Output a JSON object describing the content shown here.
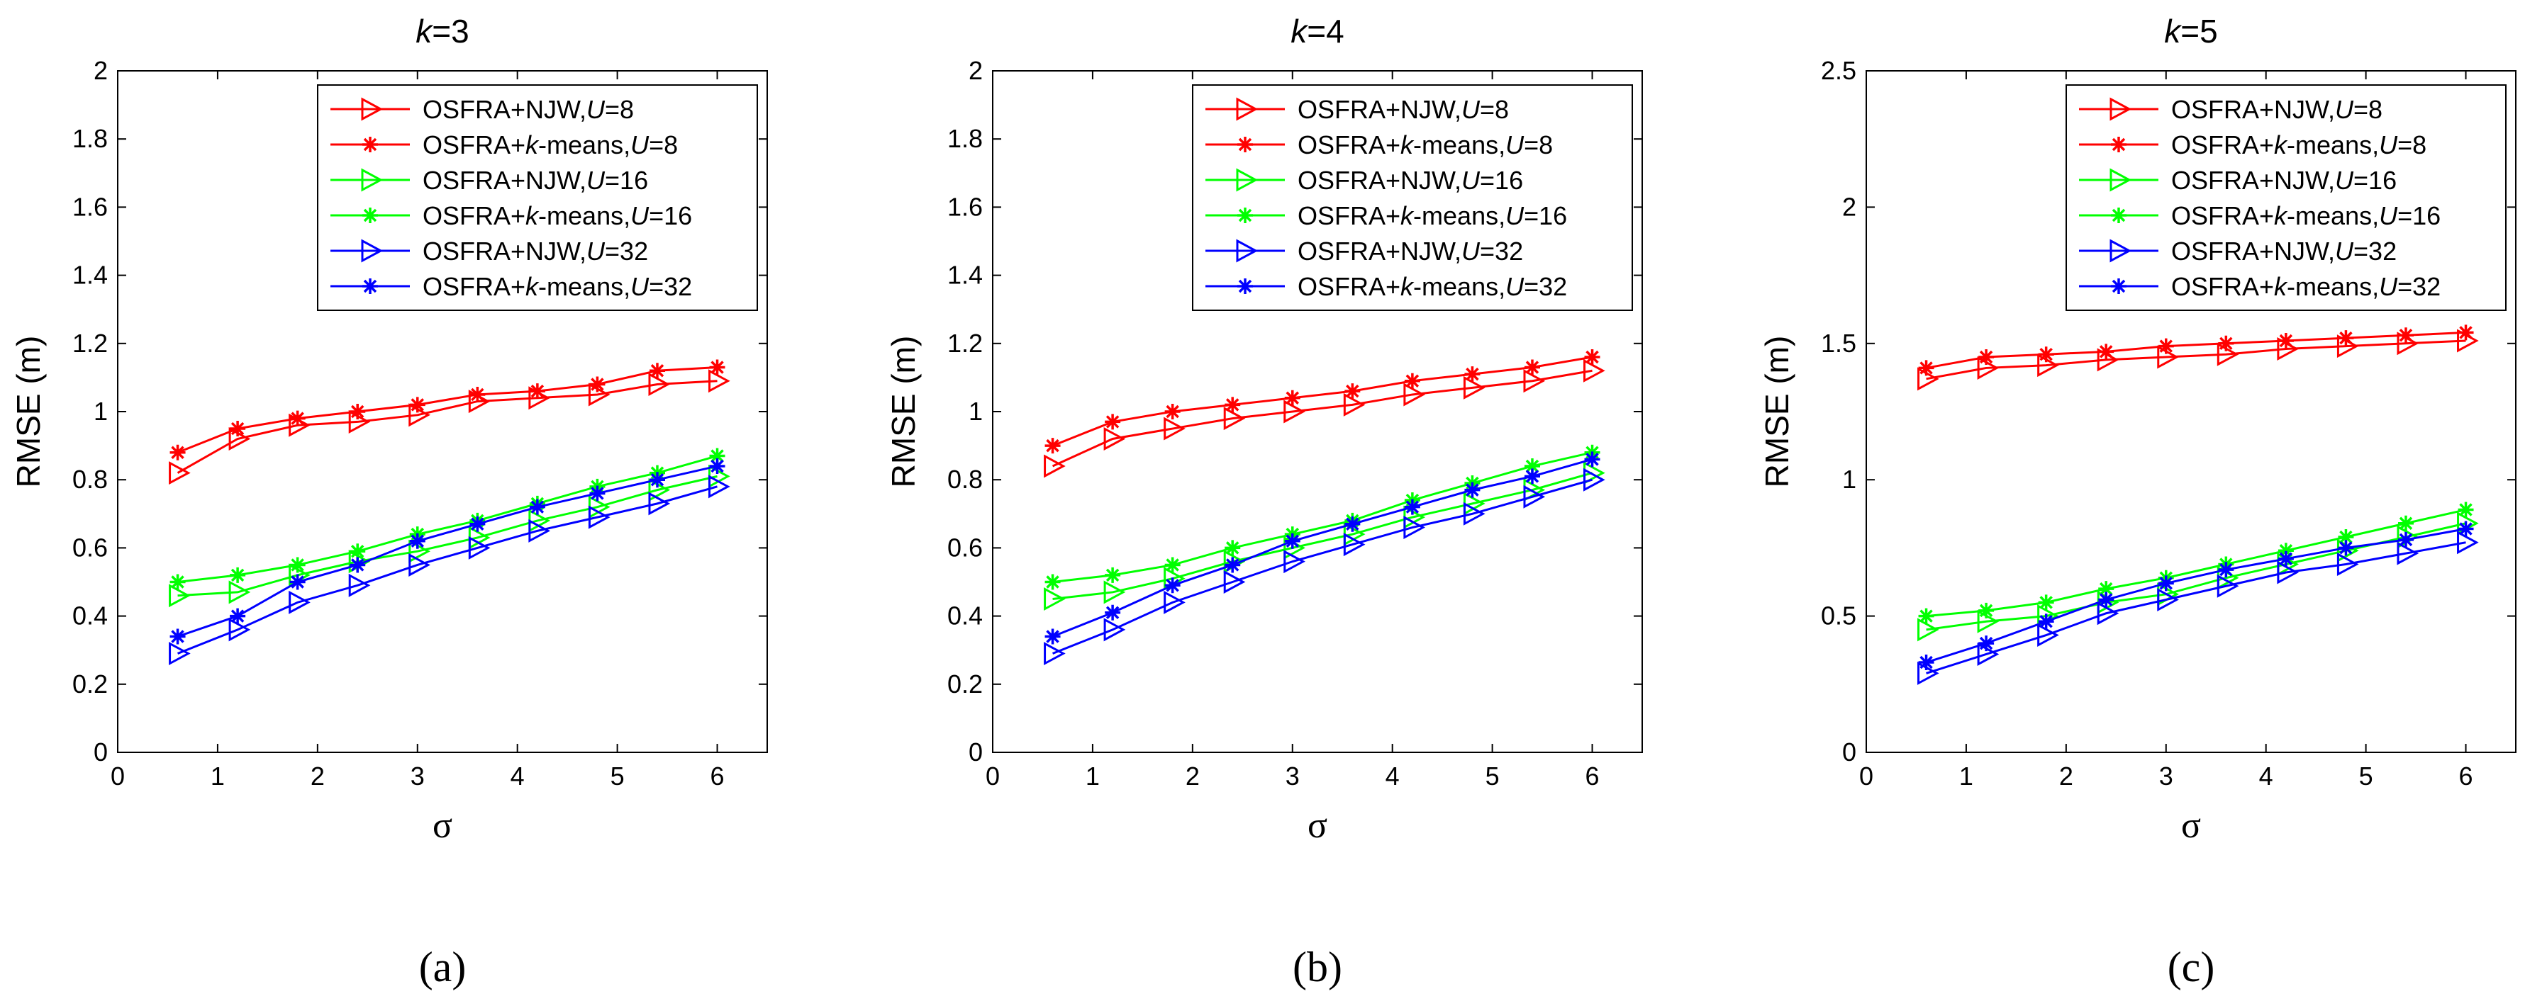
{
  "chart_data": [
    {
      "type": "line",
      "panel_label": "(a)",
      "title_prefix": "k",
      "title_suffix": "=3",
      "xlabel": "σ",
      "ylabel": "RMSE (m)",
      "xlim": [
        0,
        6.5
      ],
      "ylim": [
        0,
        2
      ],
      "xticks": [
        0,
        1,
        2,
        3,
        4,
        5,
        6
      ],
      "yticks": [
        0,
        0.2,
        0.4,
        0.6,
        0.8,
        1,
        1.2,
        1.4,
        1.6,
        1.8,
        2
      ],
      "ytick_labels": [
        "0",
        "0.2",
        "0.4",
        "0.6",
        "0.8",
        "1",
        "1.2",
        "1.4",
        "1.6",
        "1.8",
        "2"
      ],
      "x": [
        0.6,
        1.2,
        1.8,
        2.4,
        3.0,
        3.6,
        4.2,
        4.8,
        5.4,
        6.0
      ],
      "legend_position": "top-right",
      "series": [
        {
          "name": "OSFRA+NJW,U=8",
          "legend_prefix": "OSFRA+NJW,",
          "legend_ital": "U",
          "legend_suffix": "=8",
          "color": "#ff0000",
          "marker": "triangle-right",
          "values": [
            0.82,
            0.92,
            0.96,
            0.97,
            0.99,
            1.03,
            1.04,
            1.05,
            1.08,
            1.09
          ]
        },
        {
          "name": "OSFRA+k-means,U=8",
          "legend_prefix": "OSFRA+",
          "legend_k": "k",
          "legend_mid": "-means,",
          "legend_ital": "U",
          "legend_suffix": "=8",
          "color": "#ff0000",
          "marker": "star",
          "values": [
            0.88,
            0.95,
            0.98,
            1.0,
            1.02,
            1.05,
            1.06,
            1.08,
            1.12,
            1.13
          ]
        },
        {
          "name": "OSFRA+NJW,U=16",
          "legend_prefix": "OSFRA+NJW,",
          "legend_ital": "U",
          "legend_suffix": "=16",
          "color": "#00ff00",
          "marker": "triangle-right",
          "values": [
            0.46,
            0.47,
            0.52,
            0.56,
            0.59,
            0.63,
            0.68,
            0.72,
            0.77,
            0.81
          ]
        },
        {
          "name": "OSFRA+k-means,U=16",
          "legend_prefix": "OSFRA+",
          "legend_k": "k",
          "legend_mid": "-means,",
          "legend_ital": "U",
          "legend_suffix": "=16",
          "color": "#00ff00",
          "marker": "star",
          "values": [
            0.5,
            0.52,
            0.55,
            0.59,
            0.64,
            0.68,
            0.73,
            0.78,
            0.82,
            0.87
          ]
        },
        {
          "name": "OSFRA+NJW,U=32",
          "legend_prefix": "OSFRA+NJW,",
          "legend_ital": "U",
          "legend_suffix": "=32",
          "color": "#0000ff",
          "marker": "triangle-right",
          "values": [
            0.29,
            0.36,
            0.44,
            0.49,
            0.55,
            0.6,
            0.65,
            0.69,
            0.73,
            0.78
          ]
        },
        {
          "name": "OSFRA+k-means,U=32",
          "legend_prefix": "OSFRA+",
          "legend_k": "k",
          "legend_mid": "-means,",
          "legend_ital": "U",
          "legend_suffix": "=32",
          "color": "#0000ff",
          "marker": "star",
          "values": [
            0.34,
            0.4,
            0.5,
            0.55,
            0.62,
            0.67,
            0.72,
            0.76,
            0.8,
            0.84
          ]
        }
      ]
    },
    {
      "type": "line",
      "panel_label": "(b)",
      "title_prefix": "k",
      "title_suffix": "=4",
      "xlabel": "σ",
      "ylabel": "RMSE (m)",
      "xlim": [
        0,
        6.5
      ],
      "ylim": [
        0,
        2
      ],
      "xticks": [
        0,
        1,
        2,
        3,
        4,
        5,
        6
      ],
      "yticks": [
        0,
        0.2,
        0.4,
        0.6,
        0.8,
        1,
        1.2,
        1.4,
        1.6,
        1.8,
        2
      ],
      "ytick_labels": [
        "0",
        "0.2",
        "0.4",
        "0.6",
        "0.8",
        "1",
        "1.2",
        "1.4",
        "1.6",
        "1.8",
        "2"
      ],
      "x": [
        0.6,
        1.2,
        1.8,
        2.4,
        3.0,
        3.6,
        4.2,
        4.8,
        5.4,
        6.0
      ],
      "legend_position": "top-right",
      "series": [
        {
          "name": "OSFRA+NJW,U=8",
          "legend_prefix": "OSFRA+NJW,",
          "legend_ital": "U",
          "legend_suffix": "=8",
          "color": "#ff0000",
          "marker": "triangle-right",
          "values": [
            0.84,
            0.92,
            0.95,
            0.98,
            1.0,
            1.02,
            1.05,
            1.07,
            1.09,
            1.12
          ]
        },
        {
          "name": "OSFRA+k-means,U=8",
          "legend_prefix": "OSFRA+",
          "legend_k": "k",
          "legend_mid": "-means,",
          "legend_ital": "U",
          "legend_suffix": "=8",
          "color": "#ff0000",
          "marker": "star",
          "values": [
            0.9,
            0.97,
            1.0,
            1.02,
            1.04,
            1.06,
            1.09,
            1.11,
            1.13,
            1.16
          ]
        },
        {
          "name": "OSFRA+NJW,U=16",
          "legend_prefix": "OSFRA+NJW,",
          "legend_ital": "U",
          "legend_suffix": "=16",
          "color": "#00ff00",
          "marker": "triangle-right",
          "values": [
            0.45,
            0.47,
            0.51,
            0.56,
            0.6,
            0.64,
            0.69,
            0.73,
            0.77,
            0.82
          ]
        },
        {
          "name": "OSFRA+k-means,U=16",
          "legend_prefix": "OSFRA+",
          "legend_k": "k",
          "legend_mid": "-means,",
          "legend_ital": "U",
          "legend_suffix": "=16",
          "color": "#00ff00",
          "marker": "star",
          "values": [
            0.5,
            0.52,
            0.55,
            0.6,
            0.64,
            0.68,
            0.74,
            0.79,
            0.84,
            0.88
          ]
        },
        {
          "name": "OSFRA+NJW,U=32",
          "legend_prefix": "OSFRA+NJW,",
          "legend_ital": "U",
          "legend_suffix": "=32",
          "color": "#0000ff",
          "marker": "triangle-right",
          "values": [
            0.29,
            0.36,
            0.44,
            0.5,
            0.56,
            0.61,
            0.66,
            0.7,
            0.75,
            0.8
          ]
        },
        {
          "name": "OSFRA+k-means,U=32",
          "legend_prefix": "OSFRA+",
          "legend_k": "k",
          "legend_mid": "-means,",
          "legend_ital": "U",
          "legend_suffix": "=32",
          "color": "#0000ff",
          "marker": "star",
          "values": [
            0.34,
            0.41,
            0.49,
            0.55,
            0.62,
            0.67,
            0.72,
            0.77,
            0.81,
            0.86
          ]
        }
      ]
    },
    {
      "type": "line",
      "panel_label": "(c)",
      "title_prefix": "k",
      "title_suffix": "=5",
      "xlabel": "σ",
      "ylabel": "RMSE (m)",
      "xlim": [
        0,
        6.5
      ],
      "ylim": [
        0,
        2.5
      ],
      "xticks": [
        0,
        1,
        2,
        3,
        4,
        5,
        6
      ],
      "yticks": [
        0,
        0.5,
        1,
        1.5,
        2,
        2.5
      ],
      "ytick_labels": [
        "0",
        "0.5",
        "1",
        "1.5",
        "2",
        "2.5"
      ],
      "x": [
        0.6,
        1.2,
        1.8,
        2.4,
        3.0,
        3.6,
        4.2,
        4.8,
        5.4,
        6.0
      ],
      "legend_position": "top-right",
      "series": [
        {
          "name": "OSFRA+NJW,U=8",
          "legend_prefix": "OSFRA+NJW,",
          "legend_ital": "U",
          "legend_suffix": "=8",
          "color": "#ff0000",
          "marker": "triangle-right",
          "values": [
            1.37,
            1.41,
            1.42,
            1.44,
            1.45,
            1.46,
            1.48,
            1.49,
            1.5,
            1.51
          ]
        },
        {
          "name": "OSFRA+k-means,U=8",
          "legend_prefix": "OSFRA+",
          "legend_k": "k",
          "legend_mid": "-means,",
          "legend_ital": "U",
          "legend_suffix": "=8",
          "color": "#ff0000",
          "marker": "star",
          "values": [
            1.41,
            1.45,
            1.46,
            1.47,
            1.49,
            1.5,
            1.51,
            1.52,
            1.53,
            1.54
          ]
        },
        {
          "name": "OSFRA+NJW,U=16",
          "legend_prefix": "OSFRA+NJW,",
          "legend_ital": "U",
          "legend_suffix": "=16",
          "color": "#00ff00",
          "marker": "triangle-right",
          "values": [
            0.45,
            0.48,
            0.5,
            0.55,
            0.58,
            0.64,
            0.69,
            0.74,
            0.79,
            0.84
          ]
        },
        {
          "name": "OSFRA+k-means,U=16",
          "legend_prefix": "OSFRA+",
          "legend_k": "k",
          "legend_mid": "-means,",
          "legend_ital": "U",
          "legend_suffix": "=16",
          "color": "#00ff00",
          "marker": "star",
          "values": [
            0.5,
            0.52,
            0.55,
            0.6,
            0.64,
            0.69,
            0.74,
            0.79,
            0.84,
            0.89
          ]
        },
        {
          "name": "OSFRA+NJW,U=32",
          "legend_prefix": "OSFRA+NJW,",
          "legend_ital": "U",
          "legend_suffix": "=32",
          "color": "#0000ff",
          "marker": "triangle-right",
          "values": [
            0.29,
            0.36,
            0.43,
            0.51,
            0.56,
            0.61,
            0.66,
            0.69,
            0.73,
            0.77
          ]
        },
        {
          "name": "OSFRA+k-means,U=32",
          "legend_prefix": "OSFRA+",
          "legend_k": "k",
          "legend_mid": "-means,",
          "legend_ital": "U",
          "legend_suffix": "=32",
          "color": "#0000ff",
          "marker": "star",
          "values": [
            0.33,
            0.4,
            0.48,
            0.56,
            0.62,
            0.67,
            0.71,
            0.75,
            0.78,
            0.82
          ]
        }
      ]
    }
  ]
}
